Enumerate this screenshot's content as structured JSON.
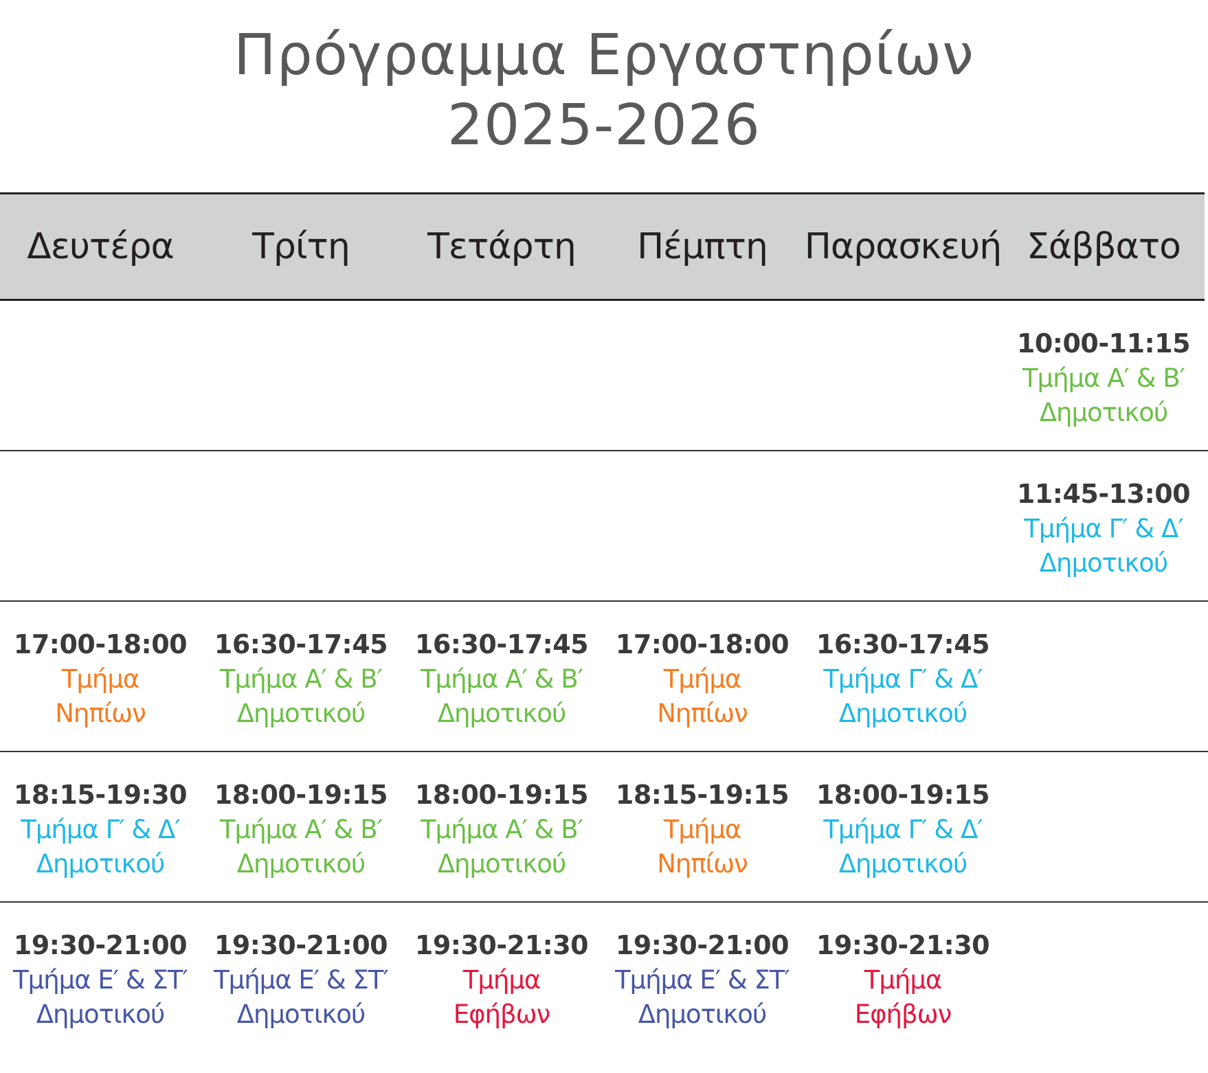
{
  "title": {
    "line1": "Πρόγραμμα Εργαστηρίων",
    "line2": "2025-2026"
  },
  "days": [
    "Δευτέρα",
    "Τρίτη",
    "Τετάρτη",
    "Πέμπτη",
    "Παρασκευή",
    "Σάββατο"
  ],
  "colors": {
    "green": "#6abf45",
    "cyan": "#1fb8e6",
    "orange": "#f47c20",
    "blue": "#4656a8",
    "red": "#e5173f",
    "time": "#3a3a3a",
    "header_bg": "#d1d2d4"
  },
  "rows": [
    [
      null,
      null,
      null,
      null,
      null,
      {
        "time": "10:00-11:15",
        "line1": "Τμήμα Α′ & Β′",
        "line2": "Δημοτικού",
        "color": "green"
      }
    ],
    [
      null,
      null,
      null,
      null,
      null,
      {
        "time": "11:45-13:00",
        "line1": "Τμήμα Γ′ & Δ′",
        "line2": "Δημοτικού",
        "color": "cyan"
      }
    ],
    [
      {
        "time": "17:00-18:00",
        "line1": "Τμήμα",
        "line2": "Νηπίων",
        "color": "orange"
      },
      {
        "time": "16:30-17:45",
        "line1": "Τμήμα Α′ & Β′",
        "line2": "Δημοτικού",
        "color": "green"
      },
      {
        "time": "16:30-17:45",
        "line1": "Τμήμα Α′ & Β′",
        "line2": "Δημοτικού",
        "color": "green"
      },
      {
        "time": "17:00-18:00",
        "line1": "Τμήμα",
        "line2": "Νηπίων",
        "color": "orange"
      },
      {
        "time": "16:30-17:45",
        "line1": "Τμήμα Γ′ & Δ′",
        "line2": "Δημοτικού",
        "color": "cyan"
      },
      null
    ],
    [
      {
        "time": "18:15-19:30",
        "line1": "Τμήμα Γ′ & Δ′",
        "line2": "Δημοτικού",
        "color": "cyan"
      },
      {
        "time": "18:00-19:15",
        "line1": "Τμήμα Α′ & Β′",
        "line2": "Δημοτικού",
        "color": "green"
      },
      {
        "time": "18:00-19:15",
        "line1": "Τμήμα Α′ & Β′",
        "line2": "Δημοτικού",
        "color": "green"
      },
      {
        "time": "18:15-19:15",
        "line1": "Τμήμα",
        "line2": "Νηπίων",
        "color": "orange"
      },
      {
        "time": "18:00-19:15",
        "line1": "Τμήμα Γ′ & Δ′",
        "line2": "Δημοτικού",
        "color": "cyan"
      },
      null
    ],
    [
      {
        "time": "19:30-21:00",
        "line1": "Τμήμα Ε′ & ΣΤ′",
        "line2": "Δημοτικού",
        "color": "blue"
      },
      {
        "time": "19:30-21:00",
        "line1": "Τμήμα Ε′ & ΣΤ′",
        "line2": "Δημοτικού",
        "color": "blue"
      },
      {
        "time": "19:30-21:30",
        "line1": "Τμήμα",
        "line2": "Εφήβων",
        "color": "red"
      },
      {
        "time": "19:30-21:00",
        "line1": "Τμήμα Ε′ & ΣΤ′",
        "line2": "Δημοτικού",
        "color": "blue"
      },
      {
        "time": "19:30-21:30",
        "line1": "Τμήμα",
        "line2": "Εφήβων",
        "color": "red"
      },
      null
    ]
  ]
}
